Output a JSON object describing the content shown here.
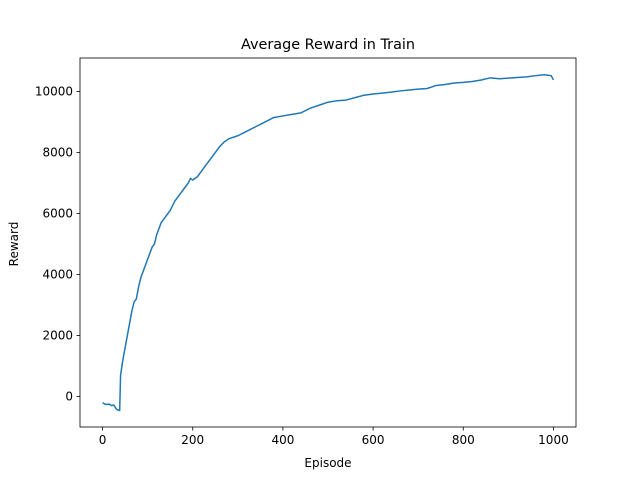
{
  "chart_data": {
    "type": "line",
    "title": "Average Reward in Train",
    "xlabel": "Episode",
    "ylabel": "Reward",
    "xlim": [
      -50,
      1050
    ],
    "ylim": [
      -1000,
      11100
    ],
    "xticks": [
      0,
      200,
      400,
      600,
      800,
      1000
    ],
    "yticks": [
      0,
      2000,
      4000,
      6000,
      8000,
      10000
    ],
    "grid": false,
    "legend": "none",
    "series": [
      {
        "color": "#1f77b4",
        "points": [
          [
            0,
            -200
          ],
          [
            5,
            -250
          ],
          [
            10,
            -260
          ],
          [
            15,
            -250
          ],
          [
            20,
            -300
          ],
          [
            25,
            -280
          ],
          [
            30,
            -400
          ],
          [
            35,
            -450
          ],
          [
            38,
            -460
          ],
          [
            40,
            700
          ],
          [
            45,
            1200
          ],
          [
            50,
            1600
          ],
          [
            55,
            2000
          ],
          [
            60,
            2400
          ],
          [
            65,
            2800
          ],
          [
            70,
            3100
          ],
          [
            75,
            3200
          ],
          [
            80,
            3600
          ],
          [
            85,
            3900
          ],
          [
            90,
            4100
          ],
          [
            95,
            4300
          ],
          [
            100,
            4500
          ],
          [
            105,
            4700
          ],
          [
            110,
            4900
          ],
          [
            115,
            5000
          ],
          [
            120,
            5300
          ],
          [
            125,
            5500
          ],
          [
            130,
            5700
          ],
          [
            140,
            5900
          ],
          [
            150,
            6100
          ],
          [
            160,
            6400
          ],
          [
            170,
            6600
          ],
          [
            180,
            6800
          ],
          [
            190,
            7000
          ],
          [
            195,
            7150
          ],
          [
            200,
            7100
          ],
          [
            210,
            7200
          ],
          [
            220,
            7400
          ],
          [
            230,
            7600
          ],
          [
            240,
            7800
          ],
          [
            250,
            8000
          ],
          [
            260,
            8200
          ],
          [
            270,
            8350
          ],
          [
            280,
            8450
          ],
          [
            300,
            8550
          ],
          [
            320,
            8700
          ],
          [
            340,
            8850
          ],
          [
            360,
            9000
          ],
          [
            380,
            9150
          ],
          [
            400,
            9200
          ],
          [
            420,
            9250
          ],
          [
            440,
            9300
          ],
          [
            460,
            9450
          ],
          [
            480,
            9550
          ],
          [
            500,
            9650
          ],
          [
            520,
            9700
          ],
          [
            540,
            9720
          ],
          [
            560,
            9800
          ],
          [
            580,
            9880
          ],
          [
            600,
            9920
          ],
          [
            620,
            9950
          ],
          [
            640,
            9980
          ],
          [
            660,
            10020
          ],
          [
            680,
            10050
          ],
          [
            700,
            10080
          ],
          [
            720,
            10100
          ],
          [
            740,
            10200
          ],
          [
            760,
            10230
          ],
          [
            780,
            10280
          ],
          [
            800,
            10300
          ],
          [
            820,
            10330
          ],
          [
            840,
            10380
          ],
          [
            860,
            10450
          ],
          [
            880,
            10420
          ],
          [
            900,
            10440
          ],
          [
            920,
            10460
          ],
          [
            940,
            10480
          ],
          [
            960,
            10520
          ],
          [
            980,
            10550
          ],
          [
            995,
            10520
          ],
          [
            1000,
            10380
          ]
        ]
      }
    ]
  }
}
